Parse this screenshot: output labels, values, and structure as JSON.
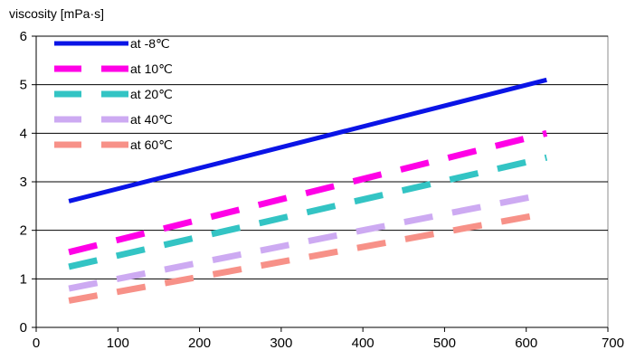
{
  "chart_data": {
    "type": "line",
    "title": "",
    "xlabel": "",
    "ylabel": "viscosity [mPa·s]",
    "xlim": [
      0,
      700
    ],
    "ylim": [
      0,
      6
    ],
    "x_ticks": [
      "0",
      "100",
      "200",
      "300",
      "400",
      "500",
      "600",
      "700"
    ],
    "y_ticks": [
      "0",
      "1",
      "2",
      "3",
      "4",
      "5",
      "6"
    ],
    "grid": {
      "horizontal": true,
      "vertical": false
    },
    "legend_position": "top-left",
    "series": [
      {
        "name": "at -8℃",
        "color": "#0a14e6",
        "style": "solid",
        "x": [
          40,
          625
        ],
        "y": [
          2.6,
          5.1
        ]
      },
      {
        "name": "at 10℃",
        "color": "#ff00e6",
        "style": "dash",
        "x": [
          40,
          625
        ],
        "y": [
          1.55,
          4.0
        ]
      },
      {
        "name": "at 20℃",
        "color": "#33c4c4",
        "style": "dash",
        "x": [
          40,
          625
        ],
        "y": [
          1.25,
          3.5
        ]
      },
      {
        "name": "at 40℃",
        "color": "#cdaaf2",
        "style": "dash",
        "x": [
          40,
          625
        ],
        "y": [
          0.8,
          2.75
        ]
      },
      {
        "name": "at 60℃",
        "color": "#f79188",
        "style": "dash",
        "x": [
          40,
          625
        ],
        "y": [
          0.55,
          2.35
        ]
      }
    ]
  }
}
